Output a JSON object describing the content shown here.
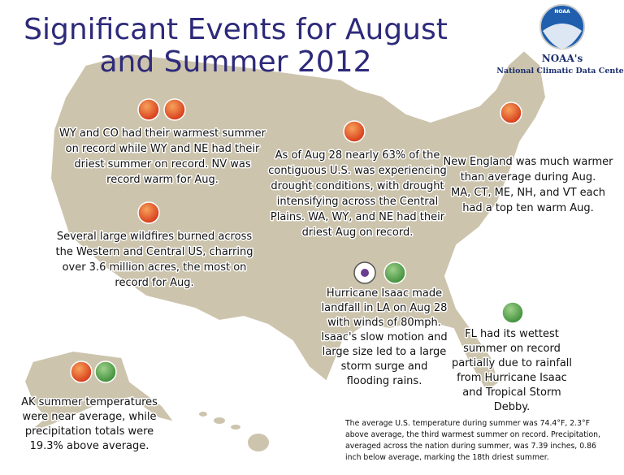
{
  "header": {
    "title_lines": [
      "Significant Events for August",
      "and Summer 2012"
    ]
  },
  "logo": {
    "badge": "NOAA",
    "name": "NOAA's",
    "org": "National Climatic Data Center"
  },
  "annotations": [
    {
      "lines": [
        "WY and CO had their warmest summer",
        "on record while WY and NE had their",
        "driest summer on record. NV was",
        "record warm for Aug."
      ]
    },
    {
      "lines": [
        "Several large wildfires burned across",
        "the Western and Central US, charring",
        "over 3.6 million acres, the most on",
        "record for Aug."
      ]
    },
    {
      "lines": [
        "As of Aug 28 nearly 63% of the",
        "contiguous U.S. was experiencing",
        "drought conditions, with drought",
        "intensifying across the Central",
        "Plains. WA, WY, and NE had their",
        "driest Aug on record."
      ]
    },
    {
      "lines": [
        "New England was much warmer",
        "than average during Aug.",
        "MA, CT, ME, NH, and VT each",
        "had a top ten warm Aug."
      ]
    },
    {
      "lines": [
        "Hurricane Isaac made",
        "landfall in LA on Aug 28",
        "with winds of 80mph.",
        "Isaac's slow motion and",
        "large size led to a large",
        "storm surge and",
        "flooding rains."
      ]
    },
    {
      "lines": [
        "FL had its wettest",
        "summer on record",
        "partially due to rainfall",
        "from Hurricane Isaac",
        "and Tropical Storm",
        "Debby."
      ]
    },
    {
      "lines": [
        "AK summer temperatures",
        "were near average, while",
        "precipitation totals were",
        "19.3% above average."
      ]
    }
  ],
  "footnote": {
    "lines": [
      "The average U.S. temperature during summer was 74.4°F, 2.3°F",
      "above average, the third warmest summer on record. Precipitation,",
      "averaged across the nation during summer, was 7.39 inches, 0.86",
      "inch below average, marking the 18th driest summer."
    ]
  }
}
